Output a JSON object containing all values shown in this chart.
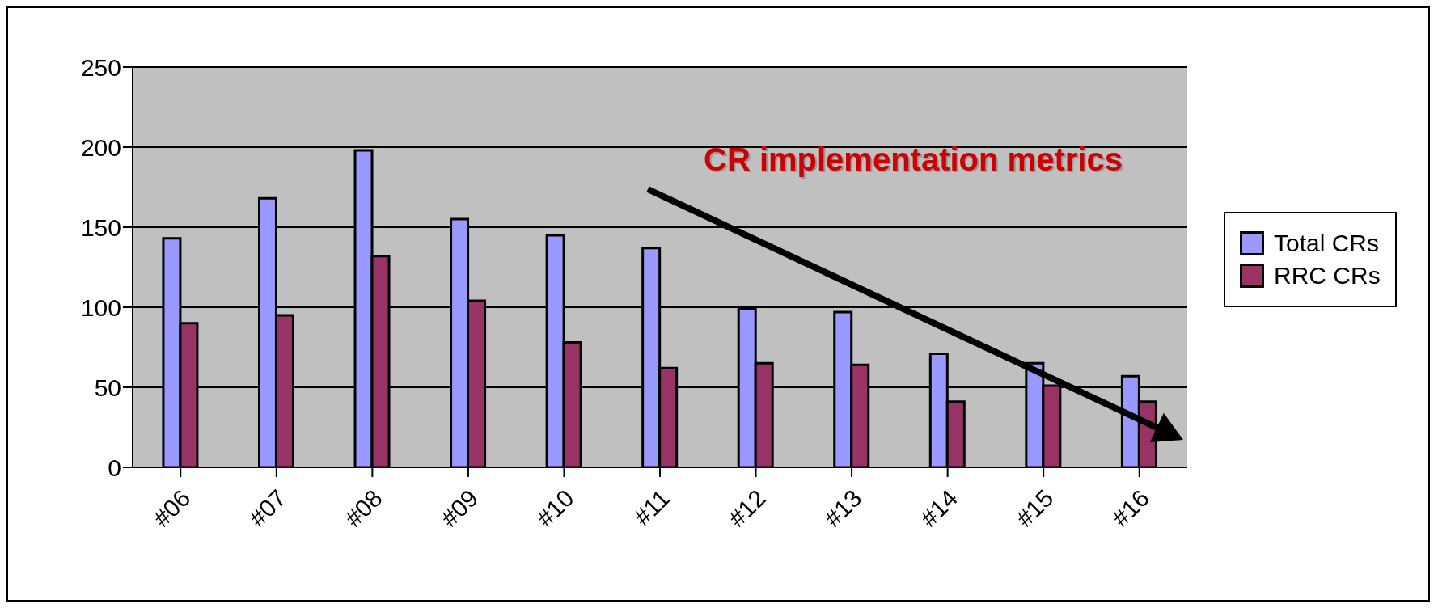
{
  "chart_data": {
    "type": "bar",
    "categories": [
      "#06",
      "#07",
      "#08",
      "#09",
      "#10",
      "#11",
      "#12",
      "#13",
      "#14",
      "#15",
      "#16"
    ],
    "series": [
      {
        "name": "Total CRs",
        "color": "#9999ff",
        "values": [
          143,
          168,
          198,
          155,
          145,
          137,
          99,
          97,
          71,
          65,
          57
        ]
      },
      {
        "name": "RRC CRs",
        "color": "#993366",
        "values": [
          90,
          95,
          132,
          104,
          78,
          62,
          65,
          64,
          41,
          51,
          41
        ]
      }
    ],
    "ylim": [
      0,
      250
    ],
    "yticks": [
      0,
      50,
      100,
      150,
      200,
      250
    ],
    "grid": "y",
    "legend": "right",
    "annotations": [
      "CR implementation metrics"
    ]
  }
}
